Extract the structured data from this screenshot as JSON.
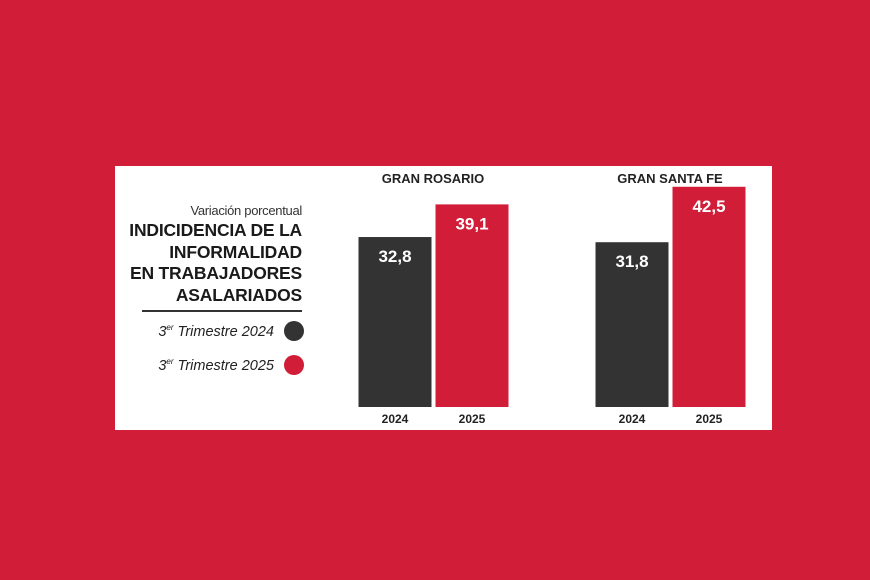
{
  "legend": {
    "subtitle": "Variación porcentual",
    "title_lines": [
      "INDICIDENCIA DE LA",
      "INFORMALIDAD",
      "EN TRABAJADORES",
      "ASALARIADOS"
    ],
    "items": [
      {
        "prefix": "3",
        "sup": "er",
        "label": " Trimestre 2024",
        "color": "#333333"
      },
      {
        "prefix": "3",
        "sup": "er",
        "label": " Trimestre 2025",
        "color": "#d21d39"
      }
    ]
  },
  "colors": {
    "background": "#d21d39",
    "panel": "#ffffff",
    "series_2024": "#333333",
    "series_2025": "#d21d39"
  },
  "chart_data": [
    {
      "type": "bar",
      "title": "GRAN ROSARIO",
      "categories": [
        "2024",
        "2025"
      ],
      "values": [
        32.8,
        39.1
      ],
      "value_labels": [
        "32,8",
        "39,1"
      ],
      "ylim": [
        0,
        44
      ],
      "grid": false
    },
    {
      "type": "bar",
      "title": "GRAN SANTA FE",
      "categories": [
        "2024",
        "2025"
      ],
      "values": [
        31.8,
        42.5
      ],
      "value_labels": [
        "31,8",
        "42,5"
      ],
      "ylim": [
        0,
        44
      ],
      "grid": false
    }
  ]
}
